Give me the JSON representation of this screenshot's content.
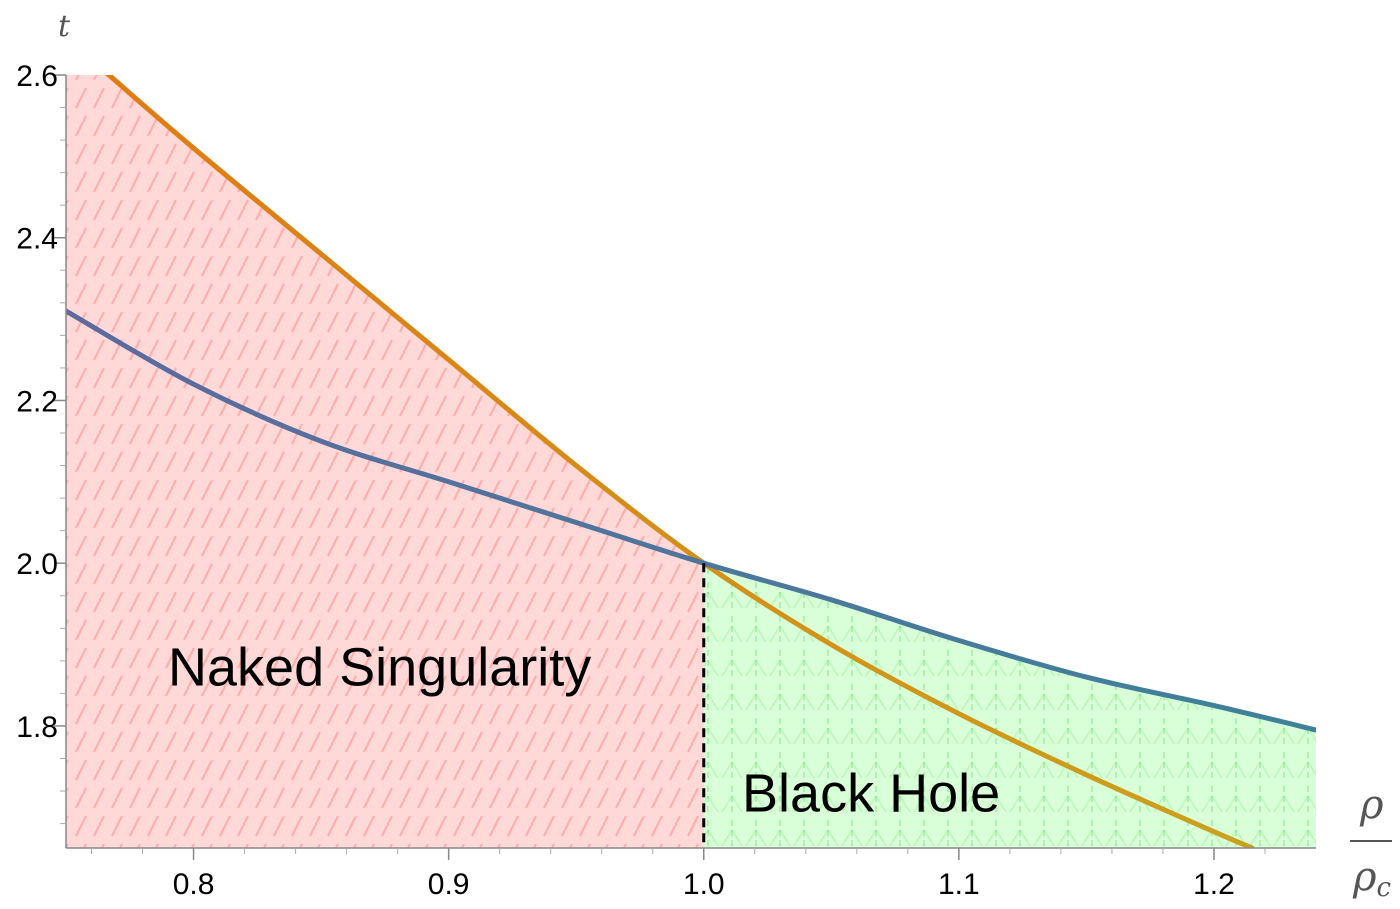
{
  "chart_data": {
    "type": "area",
    "xlim": [
      0.75,
      1.24
    ],
    "ylim": [
      1.65,
      2.6
    ],
    "x_ticks": [
      0.8,
      0.9,
      1.0,
      1.1,
      1.2
    ],
    "y_ticks": [
      1.8,
      2.0,
      2.2,
      2.4,
      2.6
    ],
    "x_tick_labels": [
      "0.8",
      "0.9",
      "1.0",
      "1.1",
      "1.2"
    ],
    "y_tick_labels": [
      "1.8",
      "2.0",
      "2.2",
      "2.4",
      "2.6"
    ],
    "ylabel": "t",
    "xlabel_num": "ρ",
    "xlabel_den": "ρ",
    "xlabel_den_sub": "c",
    "critical_x": 1.0,
    "regions": [
      {
        "label": "Naked Singularity",
        "label_x": 0.79,
        "label_y": 1.85,
        "color": "#ff9999"
      },
      {
        "label": "Black Hole",
        "label_x": 1.015,
        "label_y": 1.695,
        "color": "#99ff99"
      }
    ],
    "series": [
      {
        "color": "#e07b12",
        "color_end": "#c9a21c",
        "x": [
          0.765,
          0.8,
          0.85,
          0.9,
          0.95,
          1.0,
          1.05,
          1.1,
          1.15,
          1.2,
          1.215
        ],
        "y": [
          2.605,
          2.51,
          2.38,
          2.25,
          2.12,
          2.0,
          1.9,
          1.815,
          1.74,
          1.67,
          1.65
        ]
      },
      {
        "color": "#5d6a9e",
        "color_end": "#3e829a",
        "x": [
          0.75,
          0.8,
          0.85,
          0.9,
          0.95,
          1.0,
          1.05,
          1.1,
          1.15,
          1.2,
          1.24
        ],
        "y": [
          2.31,
          2.22,
          2.15,
          2.1,
          2.05,
          2.0,
          1.955,
          1.905,
          1.86,
          1.825,
          1.795
        ]
      }
    ]
  }
}
